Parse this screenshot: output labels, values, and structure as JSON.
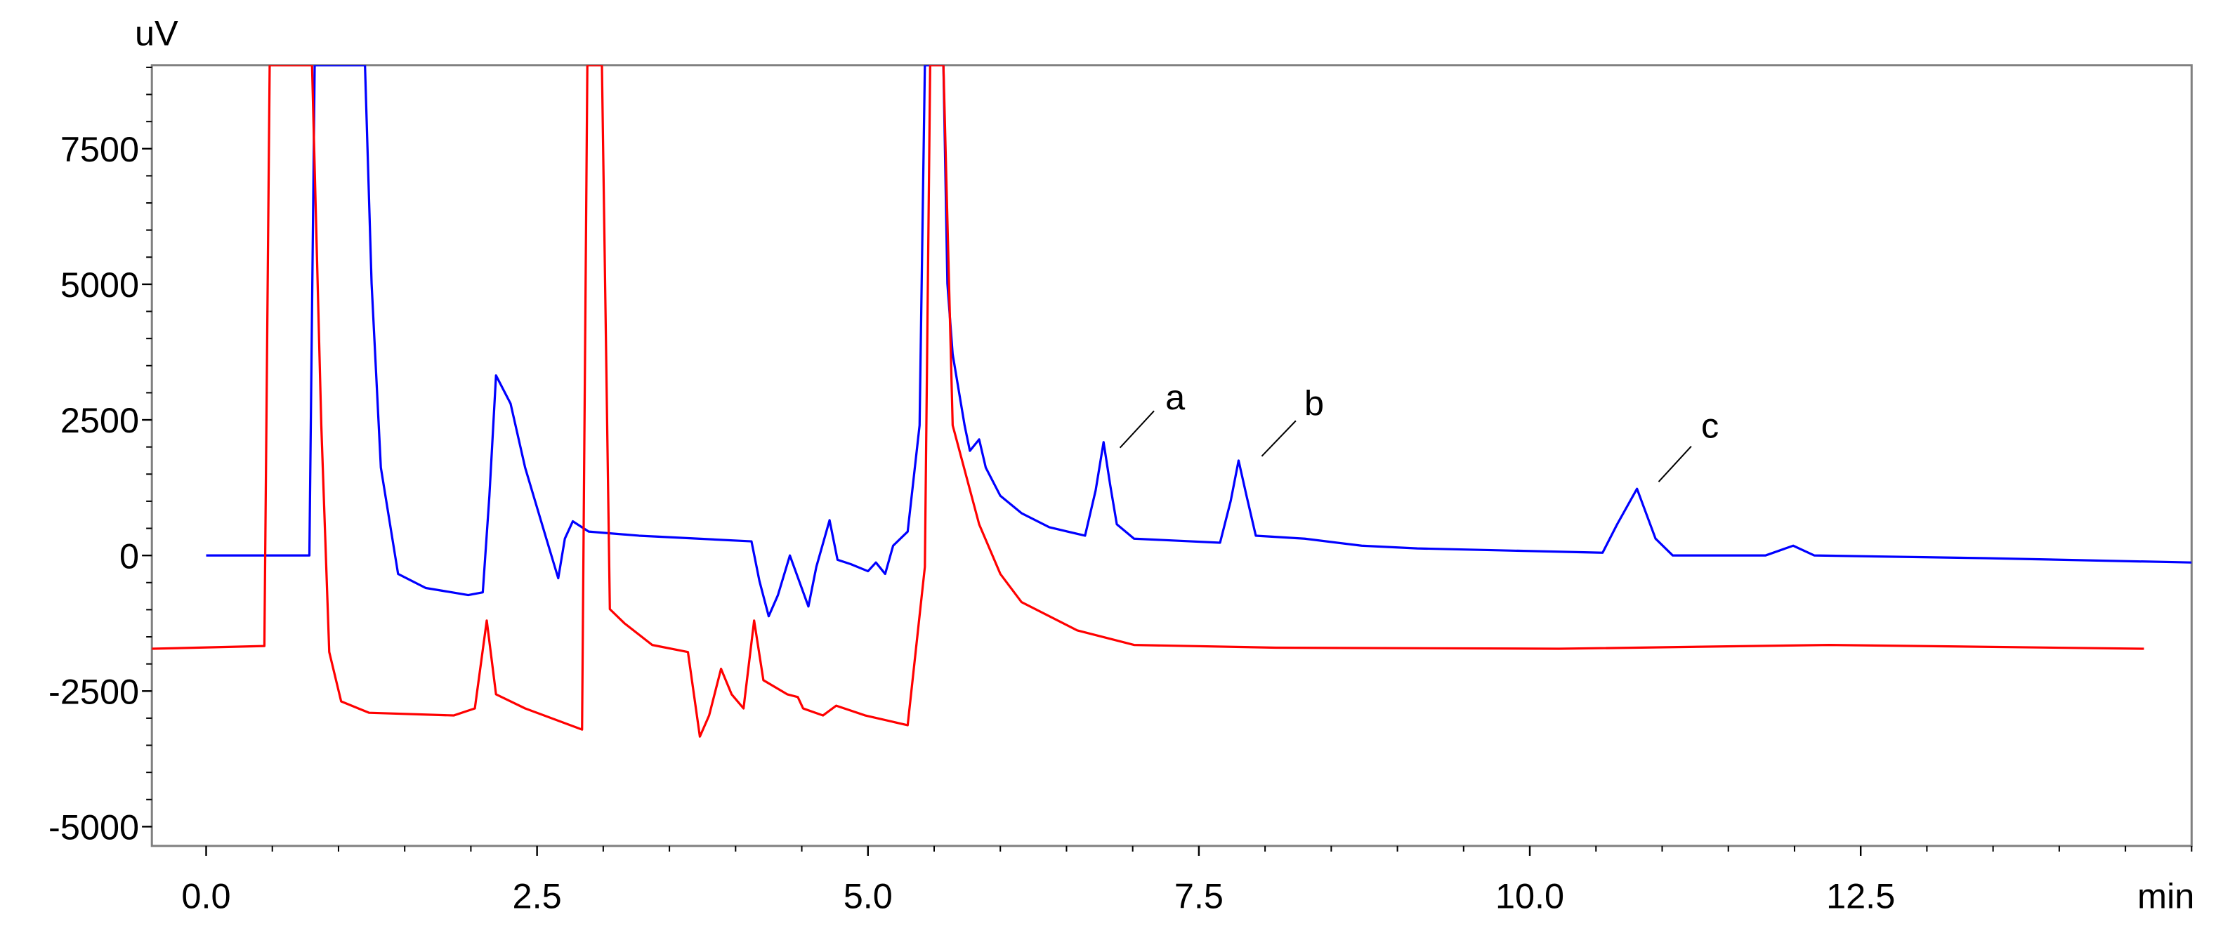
{
  "chart_data": {
    "type": "line",
    "ylabel": "uV",
    "xlabel": "min",
    "xlim": [
      -0.41,
      15.0
    ],
    "ylim": [
      -5355,
      9040
    ],
    "xticks": [
      {
        "value": 0,
        "label": "0.0"
      },
      {
        "value": 2.5,
        "label": "2.5"
      },
      {
        "value": 5,
        "label": "5.0"
      },
      {
        "value": 7.5,
        "label": "7.5"
      },
      {
        "value": 10,
        "label": "10.0"
      },
      {
        "value": 12.5,
        "label": "12.5"
      }
    ],
    "yticks": [
      -5000,
      -2500,
      0,
      2500,
      5000,
      7500
    ],
    "xminorticks": [
      0.5,
      1,
      1.5,
      2,
      3,
      3.5,
      4,
      4.5,
      5.5,
      6,
      6.5,
      7,
      8,
      8.5,
      9,
      9.5,
      10.5,
      11,
      11.5,
      12,
      13,
      13.5,
      14,
      14.5,
      15
    ],
    "yminorticks": [
      -5000,
      -4500,
      -4000,
      -3500,
      -3000,
      -2000,
      -1500,
      -1000,
      -500,
      500,
      1000,
      1500,
      2000,
      3000,
      3500,
      4000,
      4500,
      5500,
      6000,
      6500,
      7000,
      8000,
      8500,
      9000
    ],
    "annotations": [
      {
        "text": "a"
      },
      {
        "text": "b"
      },
      {
        "text": "c"
      }
    ],
    "series": [
      {
        "color": "#0000ff",
        "x": [
          0,
          0.78,
          0.82,
          0.85,
          1.2,
          1.25,
          1.32,
          1.45,
          1.66,
          1.98,
          2.09,
          2.14,
          2.19,
          2.3,
          2.41,
          2.57,
          2.66,
          2.71,
          2.77,
          2.89,
          3.27,
          4.12,
          4.18,
          4.25,
          4.32,
          4.41,
          4.48,
          4.55,
          4.61,
          4.71,
          4.77,
          4.87,
          5.0,
          5.06,
          5.13,
          5.19,
          5.3,
          5.39,
          5.43,
          5.57,
          5.6,
          5.64,
          5.73,
          5.77,
          5.84,
          5.89,
          6.0,
          6.16,
          6.37,
          6.64,
          6.72,
          6.78,
          6.83,
          6.88,
          7.01,
          7.66,
          7.74,
          7.8,
          7.86,
          7.93,
          8.3,
          8.73,
          9.15,
          10.55,
          10.66,
          10.81,
          10.95,
          11.08,
          11.78,
          11.99,
          12.15,
          13.44,
          15.0
        ],
        "values": [
          0,
          0,
          9040,
          9040,
          9040,
          5015,
          1620,
          -340,
          -600,
          -730,
          -680,
          1100,
          3320,
          2800,
          1620,
          310,
          -420,
          310,
          630,
          440,
          365,
          260,
          -470,
          -1120,
          -730,
          0,
          -470,
          -940,
          -210,
          650,
          -80,
          -160,
          -290,
          -130,
          -340,
          180,
          440,
          2400,
          9040,
          9040,
          5015,
          3710,
          2400,
          1930,
          2140,
          1620,
          1100,
          780,
          520,
          365,
          1200,
          2090,
          1300,
          575,
          310,
          235,
          1000,
          1750,
          1100,
          365,
          310,
          180,
          130,
          50,
          575,
          1230,
          310,
          0,
          0,
          180,
          0,
          -50,
          -130
        ]
      },
      {
        "color": "#ff0000",
        "x": [
          -0.41,
          0.44,
          0.48,
          0.8,
          0.87,
          0.93,
          1.02,
          1.23,
          1.87,
          2.03,
          2.12,
          2.19,
          2.41,
          2.84,
          2.88,
          2.99,
          3.05,
          3.16,
          3.37,
          3.64,
          3.73,
          3.8,
          3.89,
          3.97,
          4.06,
          4.14,
          4.21,
          4.39,
          4.47,
          4.51,
          4.66,
          4.76,
          4.98,
          5.3,
          5.43,
          5.47,
          5.57,
          5.64,
          5.84,
          6.0,
          6.16,
          6.58,
          7.01,
          8.08,
          10.22,
          12.26,
          14.64
        ],
        "values": [
          -1720,
          -1670,
          9040,
          9040,
          2400,
          -1780,
          -2690,
          -2900,
          -2950,
          -2820,
          -1200,
          -2560,
          -2820,
          -3210,
          9040,
          9040,
          -990,
          -1250,
          -1650,
          -1780,
          -3340,
          -2950,
          -2090,
          -2560,
          -2820,
          -1200,
          -2300,
          -2560,
          -2610,
          -2820,
          -2950,
          -2770,
          -2950,
          -3130,
          -210,
          9040,
          9040,
          2400,
          575,
          -340,
          -860,
          -1380,
          -1650,
          -1700,
          -1720,
          -1650,
          -1720
        ]
      }
    ]
  }
}
